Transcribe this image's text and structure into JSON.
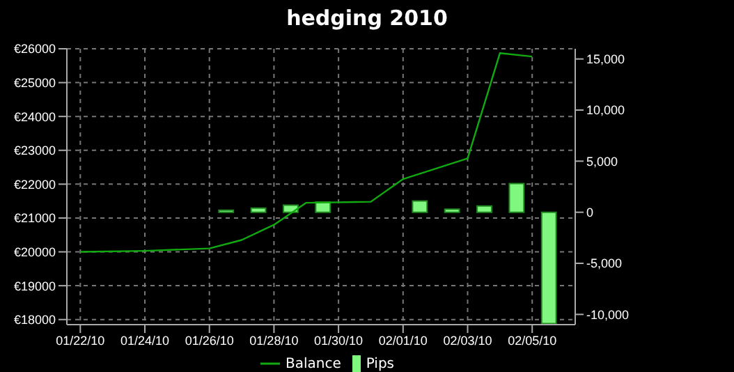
{
  "chart_data": {
    "type": "line",
    "title": "hedging 2010",
    "xlim": [
      "2010-01-21T14:00",
      "2010-02-06T08:00"
    ],
    "xticks": [
      {
        "value": "2010-01-22",
        "label": "01/22/10"
      },
      {
        "value": "2010-01-24",
        "label": "01/24/10"
      },
      {
        "value": "2010-01-26",
        "label": "01/26/10"
      },
      {
        "value": "2010-01-28",
        "label": "01/28/10"
      },
      {
        "value": "2010-01-30",
        "label": "01/30/10"
      },
      {
        "value": "2010-02-01",
        "label": "02/01/10"
      },
      {
        "value": "2010-02-03",
        "label": "02/03/10"
      },
      {
        "value": "2010-02-05",
        "label": "02/05/10"
      }
    ],
    "ylim": [
      17850,
      26000
    ],
    "yticks": [
      {
        "value": 18000,
        "label": "€18000"
      },
      {
        "value": 19000,
        "label": "€19000"
      },
      {
        "value": 20000,
        "label": "€20000"
      },
      {
        "value": 21000,
        "label": "€21000"
      },
      {
        "value": 22000,
        "label": "€22000"
      },
      {
        "value": 23000,
        "label": "€23000"
      },
      {
        "value": 24000,
        "label": "€24000"
      },
      {
        "value": 25000,
        "label": "€25000"
      },
      {
        "value": 26000,
        "label": "€26000"
      }
    ],
    "y2lim": [
      -11000,
      16000
    ],
    "y2ticks": [
      {
        "value": -10000,
        "label": "-10,000"
      },
      {
        "value": -5000,
        "label": "-5,000"
      },
      0,
      {
        "value": 5000,
        "label": "5,000"
      },
      {
        "value": 10000,
        "label": "10,000"
      },
      {
        "value": 15000,
        "label": "15,000"
      }
    ],
    "series": [
      {
        "name": "Balance",
        "color": "#11aa11",
        "x": [
          "2010-01-22",
          "2010-01-24",
          "2010-01-26",
          "2010-01-27",
          "2010-01-28",
          "2010-01-29",
          "2010-01-31",
          "2010-02-01",
          "2010-02-03",
          "2010-02-04",
          "2010-02-05"
        ],
        "values": [
          20000,
          20030,
          20100,
          20350,
          20800,
          21450,
          21480,
          22150,
          22760,
          25870,
          25770
        ]
      },
      {
        "name": "Pips",
        "type": "bar",
        "axis": "y2",
        "color": "#80f880",
        "x": [
          "2010-01-26T12:00",
          "2010-01-27T12:00",
          "2010-01-28T12:00",
          "2010-01-29T12:00",
          "2010-01-31T12:00",
          "2010-02-01T12:00",
          "2010-02-02T12:00",
          "2010-02-03T12:00",
          "2010-02-04T12:00",
          "2010-02-05T12:00"
        ],
        "values": [
          200,
          400,
          700,
          1000,
          0,
          1100,
          300,
          600,
          2800,
          -10900
        ]
      }
    ],
    "grid": true,
    "legend": "bottom",
    "marker": "none",
    "line_style": "solid"
  }
}
